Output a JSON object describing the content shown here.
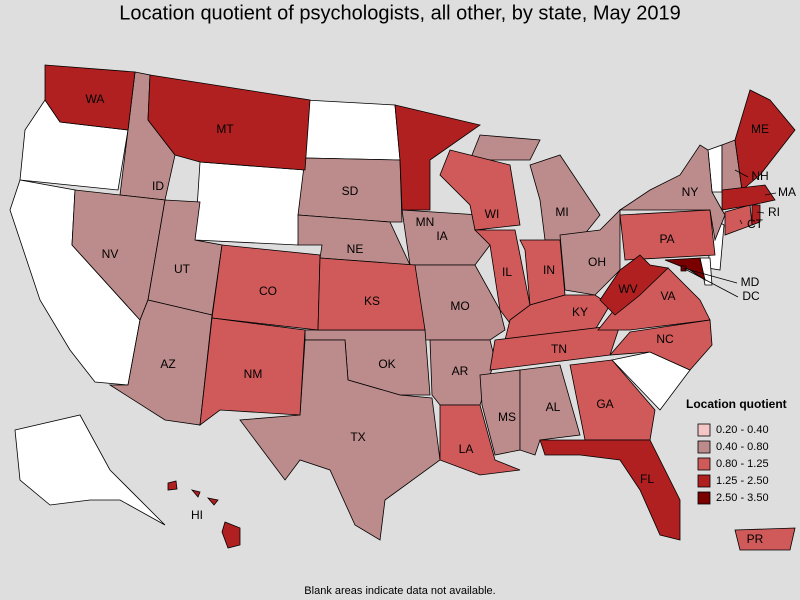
{
  "title": "Location quotient of psychologists, all other, by state, May 2019",
  "note": "Blank areas indicate data not available.",
  "legend": {
    "title": "Location quotient",
    "items": [
      {
        "label": "0.20 - 0.40",
        "color": "#f4c6c6",
        "states": []
      },
      {
        "label": "0.40 - 0.80",
        "color": "#bc8b8b",
        "states": [
          "ID",
          "NV",
          "UT",
          "AZ",
          "SD",
          "NE",
          "IA",
          "MO",
          "OK",
          "TX",
          "AR",
          "MS",
          "AL",
          "MI",
          "OH",
          "NY",
          "NH"
        ]
      },
      {
        "label": "0.80 - 1.25",
        "color": "#d05a5a",
        "states": [
          "CO",
          "NM",
          "KS",
          "WI",
          "IL",
          "IN",
          "KY",
          "TN",
          "GA",
          "PA",
          "VA",
          "NC",
          "LA",
          "CT",
          "PR"
        ]
      },
      {
        "label": "1.25 - 2.50",
        "color": "#b02020",
        "states": [
          "WA",
          "MT",
          "MN",
          "ME",
          "MA",
          "RI",
          "WV",
          "FL",
          "HI"
        ]
      },
      {
        "label": "2.50 - 3.50",
        "color": "#7a0000",
        "states": [
          "MD",
          "DC"
        ]
      }
    ]
  }
}
